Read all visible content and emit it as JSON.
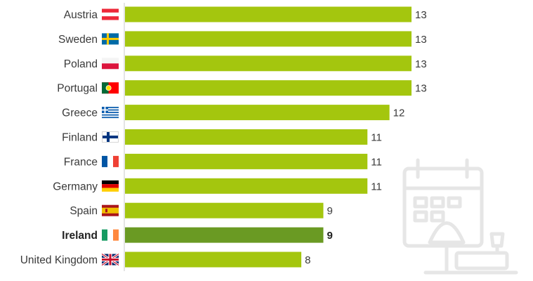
{
  "chart_data": {
    "type": "bar",
    "orientation": "horizontal",
    "categories": [
      "Austria",
      "Sweden",
      "Poland",
      "Portugal",
      "Greece",
      "Finland",
      "France",
      "Germany",
      "Spain",
      "Ireland",
      "United Kingdom"
    ],
    "values": [
      13,
      13,
      13,
      13,
      12,
      11,
      11,
      11,
      9,
      9,
      8
    ],
    "highlight": "Ireland",
    "xlim": [
      0,
      13
    ],
    "title": "",
    "xlabel": "",
    "ylabel": "",
    "grid": false,
    "legend": "none",
    "data_labels": true
  },
  "flags": [
    "austria-flag-icon",
    "sweden-flag-icon",
    "poland-flag-icon",
    "portugal-flag-icon",
    "greece-flag-icon",
    "finland-flag-icon",
    "france-flag-icon",
    "germany-flag-icon",
    "spain-flag-icon",
    "ireland-flag-icon",
    "united-kingdom-flag-icon"
  ],
  "colors": {
    "bar": "#a4c60e",
    "highlight": "#6a9a23",
    "text": "#3a3a3a",
    "axis": "#c9c9c9",
    "decoration": "#e6e6e6"
  },
  "decoration_icon": "calendar-beach-umbrella-icon"
}
